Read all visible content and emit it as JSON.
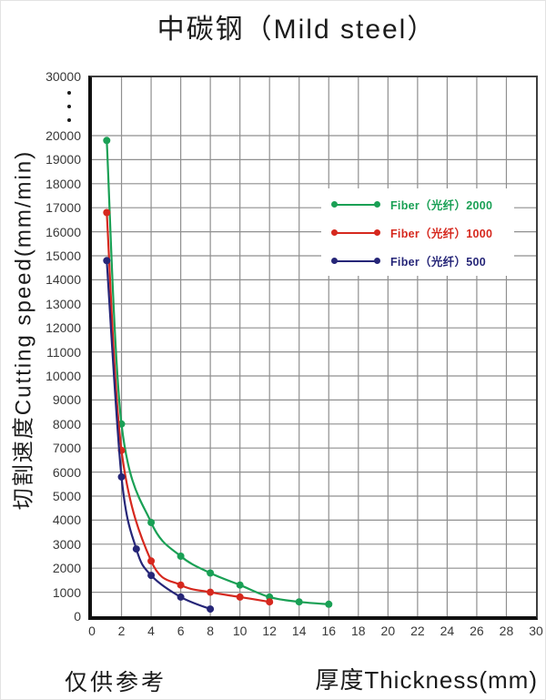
{
  "title": "中碳钢（Mild steel）",
  "footnote": "仅供参考",
  "y_axis": {
    "label": "切割速度Cutting speed(mm/min)",
    "ticks": [
      "30000",
      "20000",
      "19000",
      "18000",
      "17000",
      "16000",
      "15000",
      "14000",
      "13000",
      "12000",
      "11000",
      "10000",
      "9000",
      "8000",
      "7000",
      "6000",
      "5000",
      "4000",
      "3000",
      "2000",
      "1000",
      "0"
    ],
    "break_dots": "···"
  },
  "x_axis": {
    "label": "厚度Thickness(mm)",
    "ticks": [
      "0",
      "2",
      "4",
      "6",
      "8",
      "10",
      "12",
      "14",
      "16",
      "18",
      "20",
      "22",
      "24",
      "26",
      "28",
      "30"
    ]
  },
  "chart_data": {
    "type": "line",
    "title": "中碳钢（Mild steel）",
    "xlabel": "厚度Thickness(mm)",
    "ylabel": "切割速度Cutting speed(mm/min)",
    "xlim": [
      0,
      30
    ],
    "ylim": [
      0,
      30000
    ],
    "x_tick_step": 2,
    "y_tick_step": 1000,
    "y_axis_break": {
      "from": 20000,
      "to": 30000
    },
    "grid": true,
    "legend_position": "inside-upper-right",
    "series": [
      {
        "name": "Fiber（光纤）2000",
        "color": "#1aa055",
        "points": [
          [
            1,
            19800
          ],
          [
            2,
            8000
          ],
          [
            4,
            3900
          ],
          [
            6,
            2500
          ],
          [
            8,
            1800
          ],
          [
            10,
            1300
          ],
          [
            12,
            800
          ],
          [
            14,
            600
          ],
          [
            16,
            500
          ]
        ]
      },
      {
        "name": "Fiber（光纤）1000",
        "color": "#d6281e",
        "points": [
          [
            1,
            16800
          ],
          [
            2,
            6900
          ],
          [
            4,
            2300
          ],
          [
            6,
            1300
          ],
          [
            8,
            1000
          ],
          [
            10,
            800
          ],
          [
            12,
            600
          ]
        ]
      },
      {
        "name": "Fiber（光纤）500",
        "color": "#262678",
        "points": [
          [
            1,
            14800
          ],
          [
            2,
            5800
          ],
          [
            3,
            2800
          ],
          [
            4,
            1700
          ],
          [
            6,
            800
          ],
          [
            8,
            300
          ]
        ]
      }
    ],
    "note": "仅供参考"
  },
  "colors": {
    "grid": "#8f8f8f",
    "axis": "#101010",
    "tick_text": "#383838"
  }
}
